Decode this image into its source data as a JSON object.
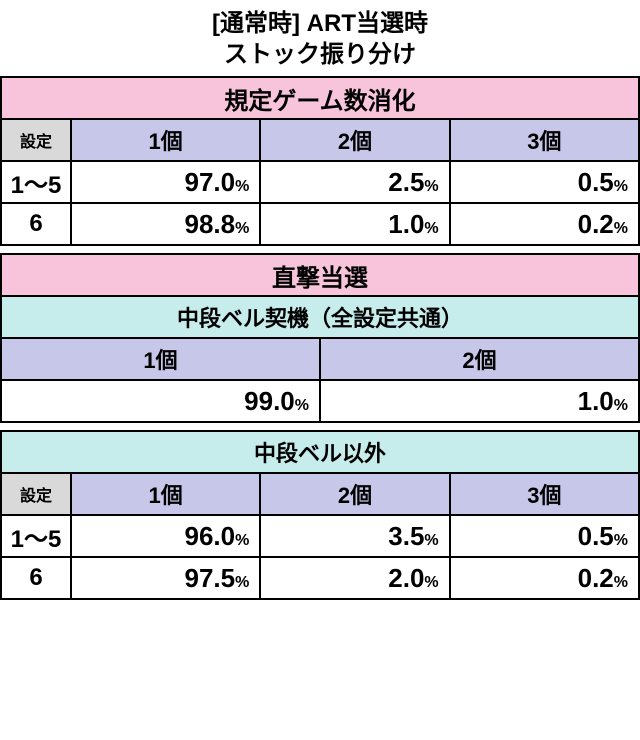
{
  "title_line1": "[通常時] ART当選時",
  "title_line2": "ストック振り分け",
  "colors": {
    "section_header_bg": "#f7c4db",
    "sub_header_bg": "#c7ecec",
    "col_header_bg": "#c7c7ea",
    "settei_header_bg": "#d9d9d9",
    "border": "#000000",
    "cell_bg": "#ffffff"
  },
  "labels": {
    "settei": "設定",
    "one": "1個",
    "two": "2個",
    "three": "3個",
    "pct": "%"
  },
  "section1": {
    "title": "規定ゲーム数消化",
    "rows": [
      {
        "settei": "1〜5",
        "v1": "97.0",
        "v2": "2.5",
        "v3": "0.5"
      },
      {
        "settei": "6",
        "v1": "98.8",
        "v2": "1.0",
        "v3": "0.2"
      }
    ]
  },
  "section2": {
    "title": "直撃当選",
    "sub": "中段ベル契機（全設定共通）",
    "row": {
      "v1": "99.0",
      "v2": "1.0"
    }
  },
  "section3": {
    "title": "中段ベル以外",
    "rows": [
      {
        "settei": "1〜5",
        "v1": "96.0",
        "v2": "3.5",
        "v3": "0.5"
      },
      {
        "settei": "6",
        "v1": "97.5",
        "v2": "2.0",
        "v3": "0.2"
      }
    ]
  }
}
